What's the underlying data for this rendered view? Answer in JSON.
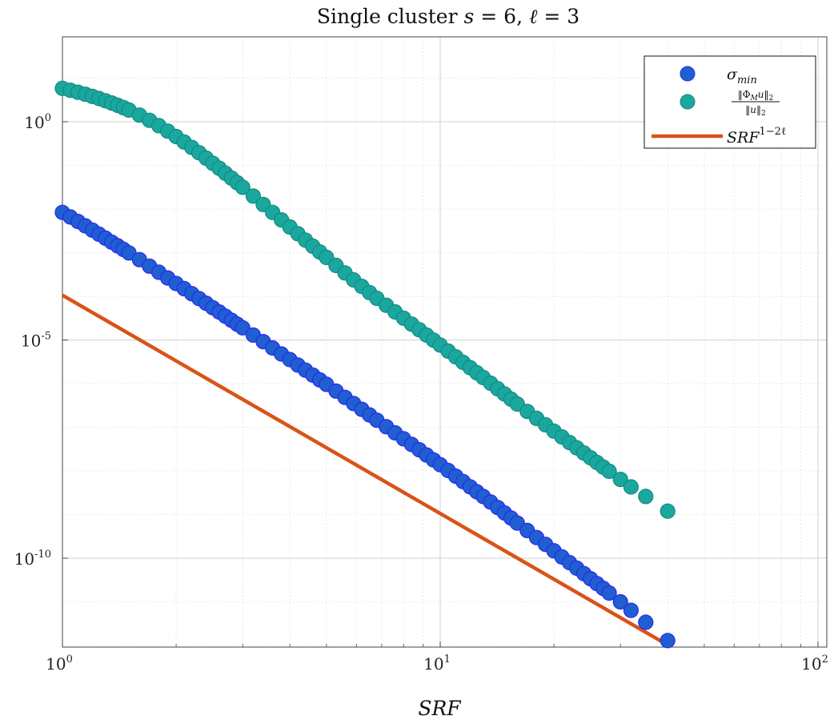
{
  "chart_data": {
    "type": "scatter",
    "title": {
      "prefix": "Single cluster ",
      "s_var": "s",
      "eq1": " = 6, ",
      "l_var": "ℓ",
      "eq2": " = 3"
    },
    "xlabel": "SRF",
    "xscale": "log",
    "yscale": "log",
    "xlim": [
      1,
      110
    ],
    "ylim": [
      1e-12,
      100.0
    ],
    "grid": true,
    "legend_position": "top-right",
    "x_ticks": [
      {
        "base": "10",
        "exp": "0",
        "value": 1
      },
      {
        "base": "10",
        "exp": "1",
        "value": 10
      },
      {
        "base": "10",
        "exp": "2",
        "value": 100
      }
    ],
    "y_ticks": [
      {
        "base": "10",
        "exp": "0",
        "value": 1
      },
      {
        "base": "10",
        "exp": "-5",
        "value": 1e-05
      },
      {
        "base": "10",
        "exp": "-10",
        "value": 1e-10
      }
    ],
    "colors": {
      "sigma": "#1f5fd0",
      "sigma_edge": "#2a2aee",
      "ratio": "#1aa89e",
      "ratio_edge": "#148a82",
      "line": "#d95319"
    },
    "series": [
      {
        "name": "σ_min",
        "legend_text": {
          "main": "σ",
          "sub": "min"
        },
        "kind": "scatter",
        "x": [
          1.0,
          1.05,
          1.1,
          1.15,
          1.2,
          1.25,
          1.3,
          1.35,
          1.4,
          1.45,
          1.5,
          1.6,
          1.7,
          1.8,
          1.9,
          2.0,
          2.1,
          2.2,
          2.3,
          2.4,
          2.5,
          2.6,
          2.7,
          2.8,
          2.9,
          3.0,
          3.2,
          3.4,
          3.6,
          3.8,
          4.0,
          4.2,
          4.4,
          4.6,
          4.8,
          5.0,
          5.3,
          5.6,
          5.9,
          6.2,
          6.5,
          6.8,
          7.2,
          7.6,
          8.0,
          8.4,
          8.8,
          9.2,
          9.6,
          10.0,
          10.5,
          11.0,
          11.5,
          12.0,
          12.5,
          13.0,
          13.6,
          14.2,
          14.8,
          15.4,
          16.0,
          17.0,
          18.0,
          19.0,
          20.0,
          21.0,
          22.0,
          23.0,
          24.0,
          25.0,
          26.0,
          27.0,
          28.0,
          30.0,
          32.0,
          35.0,
          40.0
        ],
        "y": [
          0.00837,
          0.00655,
          0.00517,
          0.00411,
          0.00329,
          0.00265,
          0.00215,
          0.00175,
          0.00144,
          0.00119,
          0.000988,
          0.000691,
          0.000492,
          0.000357,
          0.000263,
          0.000197,
          0.00015,
          0.000115,
          8.9e-05,
          6.96e-05,
          5.49e-05,
          4.37e-05,
          3.51e-05,
          2.84e-05,
          2.31e-05,
          1.9e-05,
          1.3e-05,
          9.14e-06,
          6.55e-06,
          4.78e-06,
          3.55e-06,
          2.67e-06,
          2.03e-06,
          1.57e-06,
          1.22e-06,
          9.61e-07,
          6.76e-07,
          4.83e-07,
          3.5e-07,
          2.58e-07,
          1.92e-07,
          1.45e-07,
          1.03e-07,
          7.43e-08,
          5.45e-08,
          4.05e-08,
          3.05e-08,
          2.32e-08,
          1.79e-08,
          1.39e-08,
          1.02e-08,
          7.57e-09,
          5.7e-09,
          4.34e-09,
          3.34e-09,
          2.6e-09,
          1.93e-09,
          1.45e-09,
          1.09e-09,
          8.33e-10,
          6.4e-10,
          4.31e-10,
          2.97e-10,
          2.08e-10,
          1.48e-10,
          1.07e-10,
          7.91e-11,
          5.9e-11,
          4.45e-11,
          3.39e-11,
          2.62e-11,
          2.04e-11,
          1.6e-11,
          1e-11,
          6.4e-12,
          3.4e-12,
          1.3e-12
        ]
      },
      {
        "name": "‖Φ_M u‖₂ / ‖u‖₂",
        "legend_text": {
          "num": "‖Φ",
          "num_sub": "M",
          "num_tail": "u‖",
          "num_sub2": "2",
          "den": "‖u‖",
          "den_sub": "2"
        },
        "kind": "scatter",
        "x": [
          1.0,
          1.05,
          1.1,
          1.15,
          1.2,
          1.25,
          1.3,
          1.35,
          1.4,
          1.45,
          1.5,
          1.6,
          1.7,
          1.8,
          1.9,
          2.0,
          2.1,
          2.2,
          2.3,
          2.4,
          2.5,
          2.6,
          2.7,
          2.8,
          2.9,
          3.0,
          3.2,
          3.4,
          3.6,
          3.8,
          4.0,
          4.2,
          4.4,
          4.6,
          4.8,
          5.0,
          5.3,
          5.6,
          5.9,
          6.2,
          6.5,
          6.8,
          7.2,
          7.6,
          8.0,
          8.4,
          8.8,
          9.2,
          9.6,
          10.0,
          10.5,
          11.0,
          11.5,
          12.0,
          12.5,
          13.0,
          13.6,
          14.2,
          14.8,
          15.4,
          16.0,
          17.0,
          18.0,
          19.0,
          20.0,
          21.0,
          22.0,
          23.0,
          24.0,
          25.0,
          26.0,
          27.0,
          28.0,
          30.0,
          32.0,
          35.0,
          40.0
        ],
        "y": [
          5.82,
          5.26,
          4.73,
          4.26,
          3.81,
          3.41,
          3.03,
          2.69,
          2.38,
          2.1,
          1.85,
          1.42,
          1.08,
          0.813,
          0.611,
          0.458,
          0.343,
          0.258,
          0.195,
          0.147,
          0.112,
          0.0858,
          0.0661,
          0.0513,
          0.0401,
          0.0315,
          0.0198,
          0.0127,
          0.00837,
          0.00564,
          0.00388,
          0.00272,
          0.00194,
          0.00141,
          0.00104,
          0.000778,
          0.00051,
          0.000344,
          0.000238,
          0.000169,
          0.000122,
          9e-05,
          6.22e-05,
          4.39e-05,
          3.15e-05,
          2.31e-05,
          1.72e-05,
          1.3e-05,
          9.9e-06,
          7.65e-06,
          5.56e-06,
          4.1e-06,
          3.07e-06,
          2.32e-06,
          1.78e-06,
          1.38e-06,
          1.02e-06,
          7.63e-07,
          5.77e-07,
          4.41e-07,
          3.41e-07,
          2.31e-07,
          1.6e-07,
          1.14e-07,
          8.18e-08,
          6e-08,
          4.47e-08,
          3.38e-08,
          2.58e-08,
          2e-08,
          1.56e-08,
          1.23e-08,
          9.8e-09,
          6.4e-09,
          4.3e-09,
          2.6e-09,
          1.2e-09
        ]
      },
      {
        "name": "SRF^(1−2ℓ)",
        "legend_text": {
          "main": "SRF",
          "sup": "1−2ℓ"
        },
        "kind": "line",
        "x": [
          1.0,
          40.0
        ],
        "y": [
          0.000106,
          1.03e-12
        ]
      }
    ]
  }
}
